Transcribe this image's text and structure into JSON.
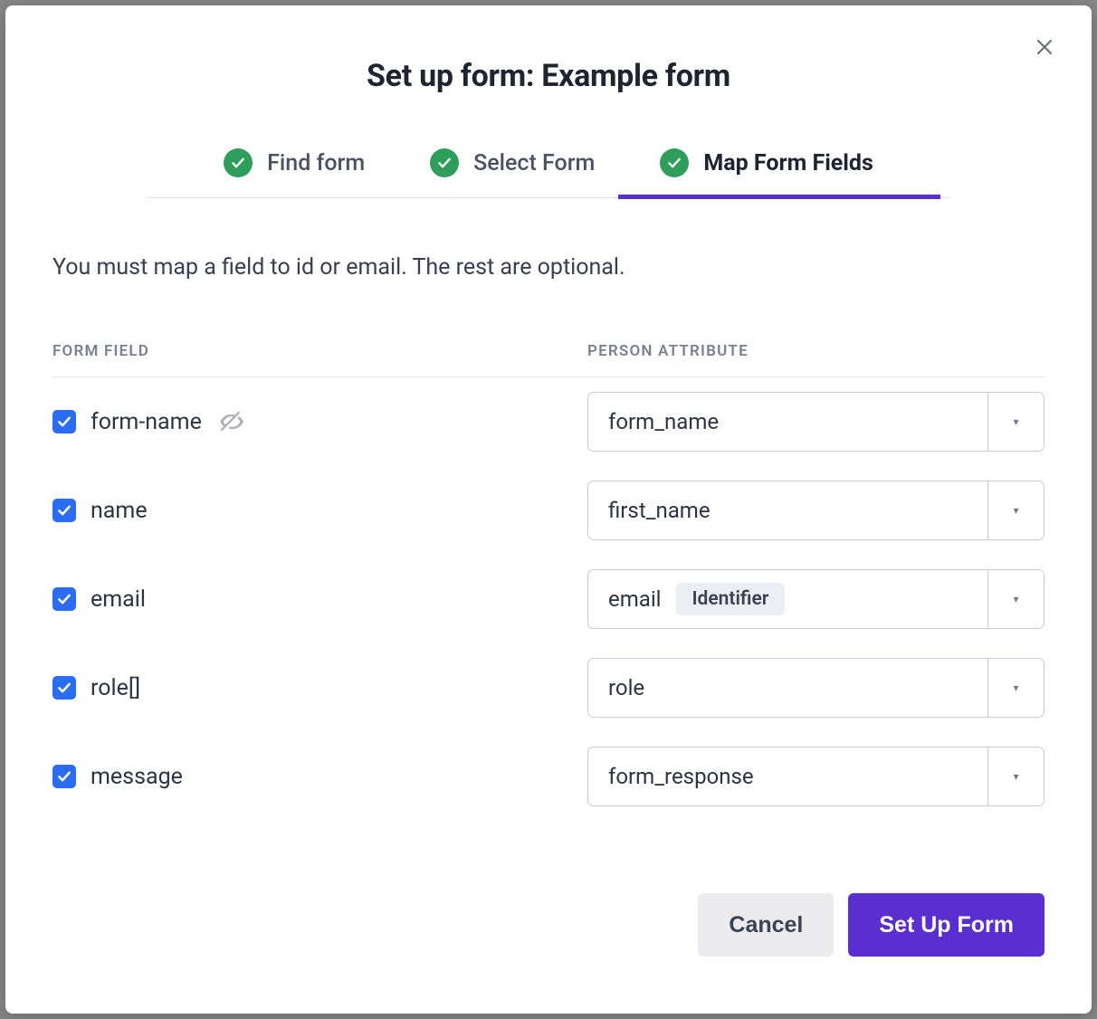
{
  "colors": {
    "primary": "#5b2ed0",
    "checkbox": "#2a6df4",
    "stepCheck": "#2f9e5a",
    "text": "#1f2430",
    "muted": "#7b8091",
    "border": "#c9cbd3",
    "badgeBg": "#eceef3",
    "btnSecondaryBg": "#ececef"
  },
  "modal": {
    "title": "Set up form: Example form",
    "closeLabel": "Close"
  },
  "steps": {
    "items": [
      {
        "label": "Find form",
        "completed": true,
        "active": false
      },
      {
        "label": "Select Form",
        "completed": true,
        "active": false
      },
      {
        "label": "Map Form Fields",
        "completed": true,
        "active": true
      }
    ]
  },
  "hint": "You must map a field to id or email. The rest are optional.",
  "table": {
    "headers": {
      "left": "FORM FIELD",
      "right": "PERSON ATTRIBUTE"
    },
    "rows": [
      {
        "checked": true,
        "field": "form-name",
        "hidden": true,
        "attribute": "form_name",
        "badge": ""
      },
      {
        "checked": true,
        "field": "name",
        "hidden": false,
        "attribute": "first_name",
        "badge": ""
      },
      {
        "checked": true,
        "field": "email",
        "hidden": false,
        "attribute": "email",
        "badge": "Identifier"
      },
      {
        "checked": true,
        "field": "role[]",
        "hidden": false,
        "attribute": "role",
        "badge": ""
      },
      {
        "checked": true,
        "field": "message",
        "hidden": false,
        "attribute": "form_response",
        "badge": ""
      }
    ]
  },
  "footer": {
    "cancel": "Cancel",
    "submit": "Set Up Form"
  }
}
